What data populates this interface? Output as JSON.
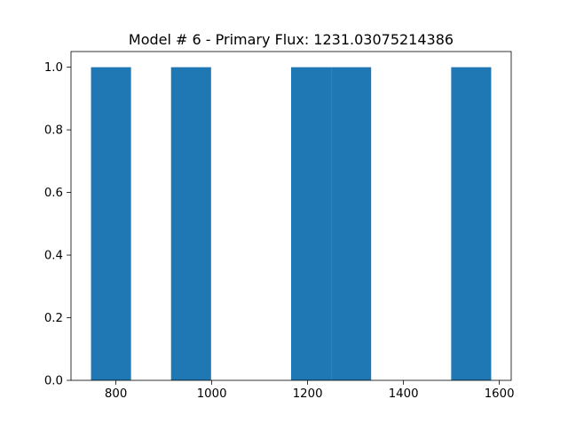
{
  "chart_data": {
    "type": "bar",
    "title": "Model # 6 - Primary Flux: 1231.03075214386",
    "xlabel": "",
    "ylabel": "",
    "bins": [
      {
        "x0": 748.0,
        "x1": 831.5,
        "value": 1.0
      },
      {
        "x0": 831.5,
        "x1": 915.0,
        "value": 0.0
      },
      {
        "x0": 915.0,
        "x1": 998.5,
        "value": 1.0
      },
      {
        "x0": 998.5,
        "x1": 1082.0,
        "value": 0.0
      },
      {
        "x0": 1082.0,
        "x1": 1165.5,
        "value": 0.0
      },
      {
        "x0": 1165.5,
        "x1": 1249.0,
        "value": 1.0
      },
      {
        "x0": 1249.0,
        "x1": 1332.5,
        "value": 1.0
      },
      {
        "x0": 1332.5,
        "x1": 1416.0,
        "value": 0.0
      },
      {
        "x0": 1416.0,
        "x1": 1499.5,
        "value": 0.0
      },
      {
        "x0": 1499.5,
        "x1": 1583.0,
        "value": 1.0
      }
    ],
    "xlim": [
      706.25,
      1624.75
    ],
    "ylim": [
      0,
      1.05
    ],
    "xticks": [
      800,
      1000,
      1200,
      1400,
      1600
    ],
    "xtick_labels": [
      "800",
      "1000",
      "1200",
      "1400",
      "1600"
    ],
    "yticks": [
      0.0,
      0.2,
      0.4,
      0.6,
      0.8,
      1.0
    ],
    "ytick_labels": [
      "0.0",
      "0.2",
      "0.4",
      "0.6",
      "0.8",
      "1.0"
    ],
    "bar_color": "#1f77b4",
    "grid": false,
    "legend": "none"
  }
}
